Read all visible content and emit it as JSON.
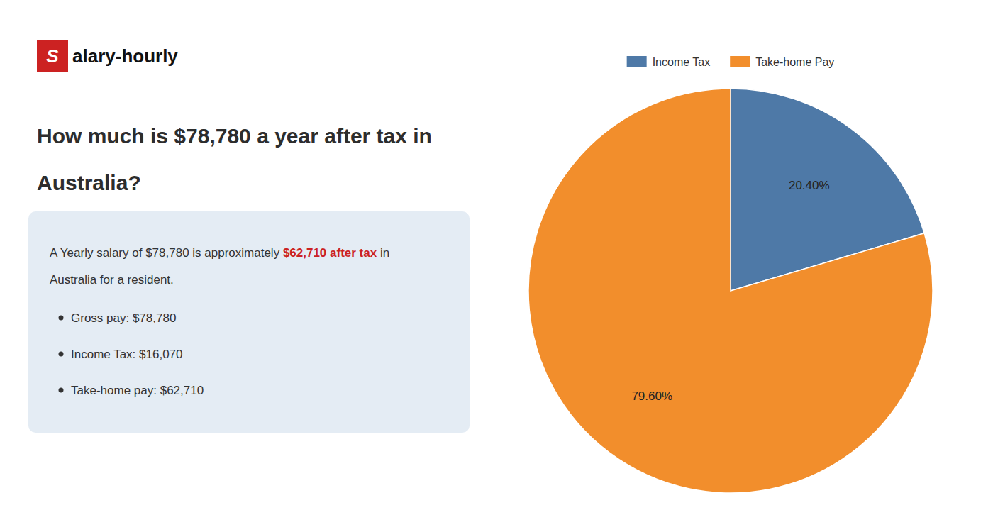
{
  "chart_data": {
    "type": "pie",
    "title": [
      "How much is $78,780 a year after tax in",
      "Australia?"
    ],
    "annotations": [
      "S",
      "alary-hourly",
      "A Yearly salary of $78,780 is approximately ",
      "$62,710 after tax",
      " in",
      "Australia for a resident.",
      "Gross pay: $78,780",
      "Income Tax: $16,070",
      "Take-home pay: $62,710"
    ],
    "categories": [
      "Income Tax",
      "Take-home Pay"
    ],
    "values": [
      20.4,
      79.6
    ],
    "value_labels": [
      "20.40%",
      "79.60%"
    ],
    "data_labels": true,
    "legend": "top"
  }
}
